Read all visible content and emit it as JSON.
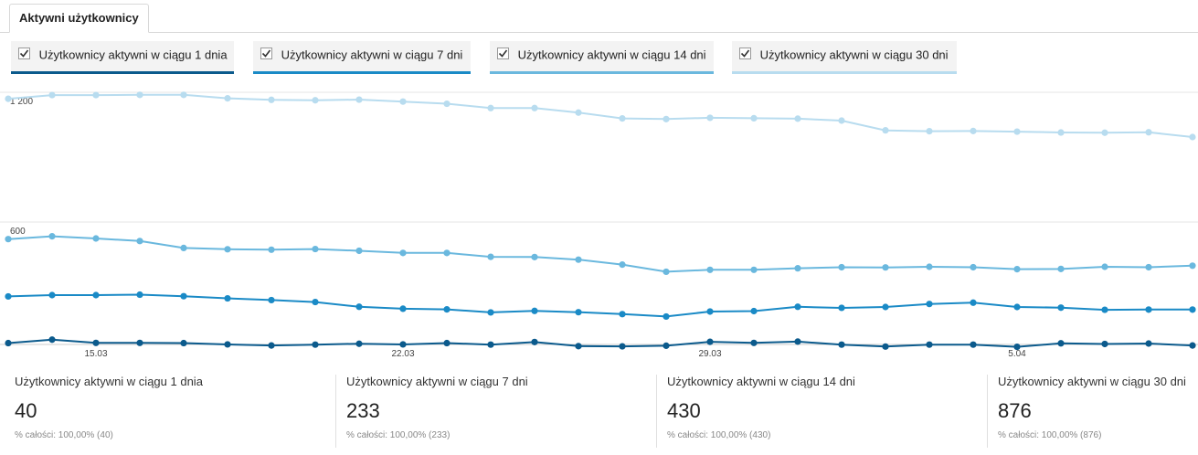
{
  "tab": {
    "label": "Aktywni użytkownicy"
  },
  "legend": [
    {
      "label": "Użytkownicy aktywni w ciągu 1 dnia",
      "color": "#0b5a8c"
    },
    {
      "label": "Użytkownicy aktywni w ciągu 7 dni",
      "color": "#1a8ac6"
    },
    {
      "label": "Użytkownicy aktywni w ciągu 14 dni",
      "color": "#6ab8de"
    },
    {
      "label": "Użytkownicy aktywni w ciągu 30 dni",
      "color": "#b8dcef"
    }
  ],
  "chart_data": {
    "type": "line",
    "ylim": [
      0,
      1200
    ],
    "yticks": [
      "1 200",
      "600"
    ],
    "ytick_values": [
      1200,
      600
    ],
    "xticks": [
      "15.03",
      "22.03",
      "29.03",
      "5.04"
    ],
    "xtick_index": [
      2,
      9,
      16,
      23
    ],
    "grid": true,
    "series": [
      {
        "name": "Użytkownicy aktywni w ciągu 30 dni",
        "color": "#b8dcef",
        "values": [
          1170,
          1187,
          1187,
          1188,
          1188,
          1172,
          1165,
          1163,
          1166,
          1157,
          1147,
          1127,
          1127,
          1106,
          1079,
          1076,
          1082,
          1080,
          1078,
          1069,
          1024,
          1020,
          1021,
          1018,
          1014,
          1013,
          1015,
          993
        ]
      },
      {
        "name": "Użytkownicy aktywni w ciągu 14 dni",
        "color": "#6ab8de",
        "values": [
          521,
          534,
          524,
          512,
          480,
          474,
          472,
          475,
          467,
          457,
          457,
          439,
          438,
          426,
          403,
          370,
          379,
          379,
          386,
          391,
          390,
          393,
          391,
          382,
          383,
          393,
          391,
          398
        ]
      },
      {
        "name": "Użytkownicy aktywni w ciągu 7 dni",
        "color": "#1a8ac6",
        "values": [
          256,
          262,
          262,
          264,
          257,
          247,
          239,
          230,
          208,
          199,
          196,
          182,
          189,
          183,
          174,
          163,
          186,
          188,
          208,
          203,
          207,
          221,
          227,
          207,
          204,
          194,
          195,
          195
        ]
      },
      {
        "name": "Użytkownicy aktywni w ciągu 1 dnia",
        "color": "#0b5a8c",
        "values": [
          40,
          56,
          41,
          41,
          40,
          34,
          29,
          33,
          37,
          34,
          40,
          33,
          45,
          26,
          25,
          28,
          46,
          41,
          47,
          33,
          24,
          33,
          33,
          23,
          39,
          36,
          38,
          29
        ]
      }
    ]
  },
  "stats": [
    {
      "name": "Użytkownicy aktywni w ciągu 1 dnia",
      "value": "40",
      "pct": "% całości: 100,00% (40)"
    },
    {
      "name": "Użytkownicy aktywni w ciągu 7 dni",
      "value": "233",
      "pct": "% całości: 100,00% (233)"
    },
    {
      "name": "Użytkownicy aktywni w ciągu 14 dni",
      "value": "430",
      "pct": "% całości: 100,00% (430)"
    },
    {
      "name": "Użytkownicy aktywni w ciągu 30 dni",
      "value": "876",
      "pct": "% całości: 100,00% (876)"
    }
  ]
}
